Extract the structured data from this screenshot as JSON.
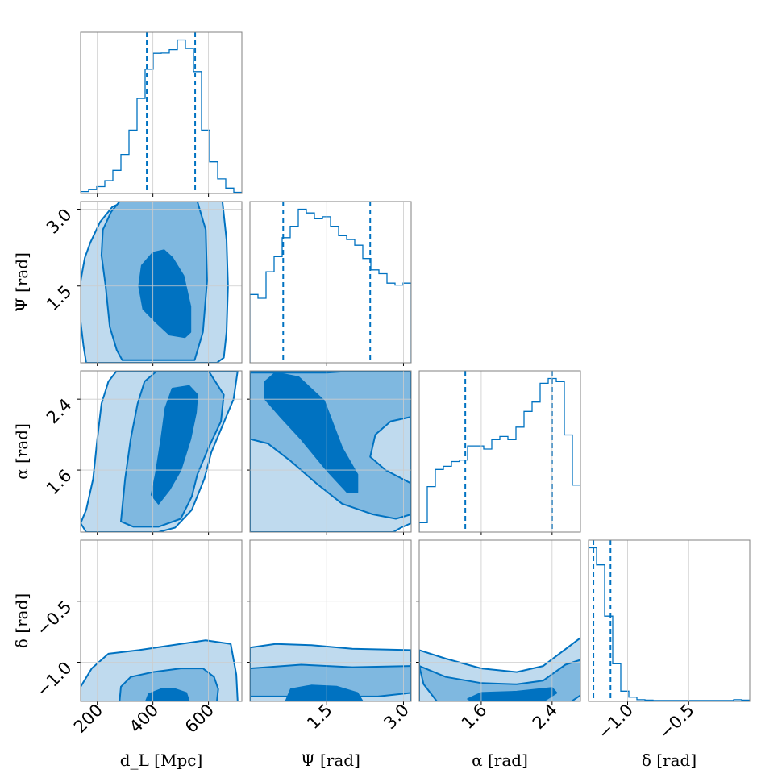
{
  "colors": {
    "main": "#0072c1",
    "level3": "#bfdaee",
    "level2": "#7fb8e0",
    "level1": "#0072c1",
    "grid": "#cccccc",
    "frame": "#808080"
  },
  "chart_data": {
    "type": "corner",
    "parameters": [
      {
        "key": "dL",
        "label": "d_L [Mpc]",
        "range": [
          140,
          720
        ],
        "ticks": [
          200,
          400,
          600
        ],
        "tick_labels": [
          "200",
          "400",
          "600"
        ]
      },
      {
        "key": "psi",
        "label": "Ψ [rad]",
        "range": [
          0.0,
          3.15
        ],
        "ticks": [
          1.5,
          3.0
        ],
        "tick_labels": [
          "1.5",
          "3.0"
        ]
      },
      {
        "key": "alpha",
        "label": "α [rad]",
        "range": [
          0.9,
          2.72
        ],
        "ticks": [
          1.6,
          2.4
        ],
        "tick_labels": [
          "1.6",
          "2.4"
        ]
      },
      {
        "key": "delta",
        "label": "δ [rad]",
        "range": [
          -1.32,
          0.0
        ],
        "ticks": [
          -1.0,
          -0.5
        ],
        "tick_labels": [
          "−1.0",
          "−0.5"
        ]
      }
    ],
    "histograms": [
      {
        "param": "dL",
        "edges": [
          140,
          169,
          198,
          227,
          256,
          285,
          314,
          343,
          372,
          401,
          430,
          459,
          488,
          517,
          546,
          575,
          604,
          633,
          662,
          691,
          720
        ],
        "counts": [
          0.8,
          1.6,
          2.8,
          5.3,
          9.5,
          16,
          26,
          39,
          51,
          57.5,
          57.6,
          59,
          63,
          59.5,
          50,
          26,
          13,
          6,
          2.2,
          0.5
        ],
        "quantiles": [
          378,
          552
        ]
      },
      {
        "param": "psi",
        "edges": [
          0,
          0.1575,
          0.315,
          0.4725,
          0.63,
          0.7875,
          0.945,
          1.1025,
          1.26,
          1.4175,
          1.575,
          1.7325,
          1.89,
          2.0475,
          2.205,
          2.3625,
          2.52,
          2.6775,
          2.835,
          2.9925,
          3.15
        ],
        "counts": [
          36,
          34,
          48,
          56,
          66,
          72,
          81,
          79,
          76,
          77,
          72,
          67,
          65,
          62,
          55,
          49,
          47,
          42,
          41,
          42
        ],
        "quantiles": [
          0.65,
          2.35
        ]
      },
      {
        "param": "alpha",
        "edges": [
          0.9,
          0.991,
          1.082,
          1.173,
          1.264,
          1.355,
          1.446,
          1.537,
          1.628,
          1.719,
          1.81,
          1.901,
          1.992,
          2.083,
          2.174,
          2.265,
          2.356,
          2.447,
          2.538,
          2.629,
          2.72
        ],
        "counts": [
          6,
          29,
          40,
          42,
          45,
          46,
          55,
          55,
          53,
          59,
          61,
          59,
          67,
          77,
          83,
          95,
          98,
          96,
          62,
          30
        ],
        "quantiles": [
          1.42,
          2.4
        ]
      },
      {
        "param": "delta",
        "edges": [
          -1.32,
          -1.254,
          -1.188,
          -1.122,
          -1.056,
          -0.99,
          -0.924,
          -0.858,
          -0.792,
          -0.726,
          -0.66,
          -0.594,
          -0.528,
          -0.462,
          -0.396,
          -0.33,
          -0.264,
          -0.198,
          -0.132,
          -0.066,
          0.0
        ],
        "counts": [
          180,
          160,
          100,
          44,
          12,
          5,
          2,
          1.5,
          1,
          1,
          1,
          1,
          1,
          1,
          1,
          1,
          1,
          1,
          2,
          1.5
        ],
        "quantiles": [
          -1.28,
          -1.14
        ]
      }
    ],
    "contours_2d": [
      {
        "x": "dL",
        "y": "psi",
        "levels": [
          [
            [
              155,
              2.05
            ],
            [
              175,
              2.35
            ],
            [
              210,
              2.75
            ],
            [
              255,
              3.05
            ],
            [
              300,
              3.15
            ],
            [
              555,
              3.15
            ],
            [
              650,
              3.15
            ],
            [
              665,
              2.4
            ],
            [
              670,
              1.5
            ],
            [
              665,
              0.6
            ],
            [
              655,
              0.1
            ],
            [
              630,
              0.0
            ],
            [
              160,
              0.0
            ],
            [
              150,
              0.35
            ],
            [
              140,
              0.8
            ],
            [
              140,
              1.6
            ],
            [
              155,
              2.05
            ]
          ],
          [
            [
              230,
              1.5
            ],
            [
              215,
              2.1
            ],
            [
              220,
              2.6
            ],
            [
              250,
              2.95
            ],
            [
              280,
              3.15
            ],
            [
              560,
              3.15
            ],
            [
              590,
              2.6
            ],
            [
              595,
              1.6
            ],
            [
              580,
              0.6
            ],
            [
              550,
              0.05
            ],
            [
              290,
              0.05
            ],
            [
              270,
              0.25
            ],
            [
              245,
              0.7
            ],
            [
              230,
              1.5
            ]
          ],
          [
            [
              350,
              1.5
            ],
            [
              360,
              1.9
            ],
            [
              400,
              2.15
            ],
            [
              440,
              2.2
            ],
            [
              470,
              2.05
            ],
            [
              510,
              1.7
            ],
            [
              535,
              1.1
            ],
            [
              535,
              0.6
            ],
            [
              515,
              0.5
            ],
            [
              460,
              0.55
            ],
            [
              410,
              0.8
            ],
            [
              365,
              1.05
            ],
            [
              350,
              1.5
            ]
          ]
        ]
      },
      {
        "x": "psi",
        "y": "alpha",
        "levels": [
          [
            [
              0.0,
              1.0
            ],
            [
              0.0,
              2.72
            ],
            [
              3.15,
              2.72
            ],
            [
              3.15,
              1.0
            ],
            [
              2.95,
              0.95
            ],
            [
              2.8,
              0.9
            ],
            [
              0.0,
              0.9
            ],
            [
              0.0,
              1.0
            ]
          ],
          [
            [
              0.0,
              1.95
            ],
            [
              0.35,
              1.9
            ],
            [
              0.8,
              1.7
            ],
            [
              1.3,
              1.45
            ],
            [
              1.8,
              1.22
            ],
            [
              2.4,
              1.1
            ],
            [
              2.85,
              1.05
            ],
            [
              3.15,
              1.1
            ],
            [
              3.15,
              1.45
            ],
            [
              2.65,
              1.6
            ],
            [
              2.35,
              1.75
            ],
            [
              2.45,
              2.0
            ],
            [
              2.75,
              2.15
            ],
            [
              3.15,
              2.2
            ],
            [
              3.15,
              2.72
            ],
            [
              2.0,
              2.72
            ],
            [
              1.5,
              2.7
            ],
            [
              0.0,
              2.7
            ],
            [
              0.0,
              1.95
            ]
          ],
          [
            [
              0.3,
              2.6
            ],
            [
              0.5,
              2.7
            ],
            [
              0.95,
              2.65
            ],
            [
              1.45,
              2.38
            ],
            [
              1.8,
              1.85
            ],
            [
              2.1,
              1.55
            ],
            [
              2.1,
              1.35
            ],
            [
              1.9,
              1.35
            ],
            [
              1.5,
              1.6
            ],
            [
              1.0,
              1.95
            ],
            [
              0.6,
              2.2
            ],
            [
              0.3,
              2.4
            ],
            [
              0.3,
              2.6
            ]
          ]
        ]
      },
      {
        "x": "alpha",
        "y": "delta",
        "levels": [
          [
            [
              0.9,
              -0.9
            ],
            [
              1.2,
              -0.97
            ],
            [
              1.6,
              -1.05
            ],
            [
              2.0,
              -1.08
            ],
            [
              2.3,
              -1.03
            ],
            [
              2.5,
              -0.92
            ],
            [
              2.72,
              -0.8
            ],
            [
              2.72,
              -1.32
            ],
            [
              0.9,
              -1.32
            ],
            [
              0.9,
              -0.9
            ]
          ],
          [
            [
              0.9,
              -1.03
            ],
            [
              1.2,
              -1.12
            ],
            [
              1.6,
              -1.17
            ],
            [
              2.0,
              -1.18
            ],
            [
              2.3,
              -1.15
            ],
            [
              2.55,
              -1.02
            ],
            [
              2.72,
              -0.98
            ],
            [
              2.72,
              -1.27
            ],
            [
              2.62,
              -1.32
            ],
            [
              1.1,
              -1.32
            ],
            [
              0.95,
              -1.18
            ],
            [
              0.9,
              -1.03
            ]
          ],
          [
            [
              1.45,
              -1.3
            ],
            [
              1.6,
              -1.25
            ],
            [
              2.0,
              -1.24
            ],
            [
              2.4,
              -1.21
            ],
            [
              2.45,
              -1.25
            ],
            [
              2.3,
              -1.32
            ],
            [
              1.5,
              -1.32
            ],
            [
              1.45,
              -1.3
            ]
          ]
        ]
      },
      {
        "x": "dL",
        "y": "alpha",
        "levels": [
          [
            [
              140,
              1.0
            ],
            [
              160,
              1.15
            ],
            [
              185,
              1.5
            ],
            [
              200,
              1.95
            ],
            [
              215,
              2.35
            ],
            [
              240,
              2.6
            ],
            [
              270,
              2.72
            ],
            [
              705,
              2.72
            ],
            [
              690,
              2.4
            ],
            [
              650,
              2.1
            ],
            [
              610,
              1.8
            ],
            [
              585,
              1.5
            ],
            [
              540,
              1.15
            ],
            [
              480,
              0.95
            ],
            [
              420,
              0.9
            ],
            [
              160,
              0.9
            ],
            [
              140,
              1.0
            ]
          ],
          [
            [
              285,
              1.02
            ],
            [
              300,
              1.5
            ],
            [
              320,
              1.95
            ],
            [
              345,
              2.35
            ],
            [
              370,
              2.6
            ],
            [
              415,
              2.72
            ],
            [
              600,
              2.72
            ],
            [
              655,
              2.45
            ],
            [
              645,
              2.15
            ],
            [
              600,
              1.85
            ],
            [
              560,
              1.55
            ],
            [
              540,
              1.3
            ],
            [
              500,
              1.05
            ],
            [
              420,
              0.96
            ],
            [
              330,
              0.96
            ],
            [
              285,
              1.02
            ]
          ],
          [
            [
              395,
              1.32
            ],
            [
              410,
              1.55
            ],
            [
              430,
              1.95
            ],
            [
              445,
              2.3
            ],
            [
              470,
              2.52
            ],
            [
              530,
              2.55
            ],
            [
              560,
              2.45
            ],
            [
              555,
              2.25
            ],
            [
              535,
              1.95
            ],
            [
              500,
              1.6
            ],
            [
              460,
              1.38
            ],
            [
              420,
              1.22
            ],
            [
              395,
              1.32
            ]
          ]
        ]
      },
      {
        "x": "dL",
        "y": "delta",
        "levels": [
          [
            [
              140,
              -1.2
            ],
            [
              180,
              -1.05
            ],
            [
              240,
              -0.93
            ],
            [
              350,
              -0.9
            ],
            [
              500,
              -0.85
            ],
            [
              590,
              -0.82
            ],
            [
              680,
              -0.85
            ],
            [
              700,
              -1.1
            ],
            [
              705,
              -1.32
            ],
            [
              140,
              -1.32
            ],
            [
              140,
              -1.2
            ]
          ],
          [
            [
              280,
              -1.32
            ],
            [
              285,
              -1.2
            ],
            [
              320,
              -1.12
            ],
            [
              400,
              -1.08
            ],
            [
              500,
              -1.05
            ],
            [
              580,
              -1.05
            ],
            [
              620,
              -1.12
            ],
            [
              635,
              -1.22
            ],
            [
              630,
              -1.32
            ],
            [
              280,
              -1.32
            ]
          ],
          [
            [
              375,
              -1.32
            ],
            [
              385,
              -1.26
            ],
            [
              430,
              -1.22
            ],
            [
              480,
              -1.22
            ],
            [
              520,
              -1.25
            ],
            [
              530,
              -1.32
            ],
            [
              375,
              -1.32
            ]
          ]
        ]
      },
      {
        "x": "psi",
        "y": "delta",
        "levels": [
          [
            [
              0.0,
              -0.88
            ],
            [
              0.5,
              -0.85
            ],
            [
              1.2,
              -0.86
            ],
            [
              2.0,
              -0.89
            ],
            [
              3.15,
              -0.9
            ],
            [
              3.15,
              -1.32
            ],
            [
              0.0,
              -1.32
            ],
            [
              0.0,
              -0.88
            ]
          ],
          [
            [
              0.0,
              -1.05
            ],
            [
              1.0,
              -1.02
            ],
            [
              2.0,
              -1.04
            ],
            [
              3.15,
              -1.03
            ],
            [
              3.15,
              -1.25
            ],
            [
              2.5,
              -1.28
            ],
            [
              0.0,
              -1.28
            ],
            [
              0.0,
              -1.05
            ]
          ],
          [
            [
              0.7,
              -1.32
            ],
            [
              0.8,
              -1.22
            ],
            [
              1.2,
              -1.19
            ],
            [
              1.7,
              -1.2
            ],
            [
              2.1,
              -1.25
            ],
            [
              2.2,
              -1.32
            ],
            [
              0.7,
              -1.32
            ]
          ]
        ]
      }
    ]
  }
}
